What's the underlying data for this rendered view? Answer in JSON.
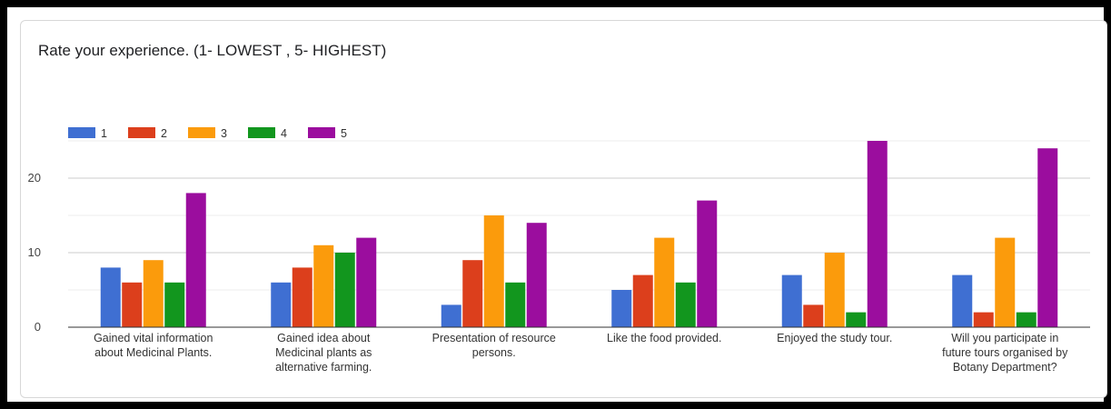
{
  "chart_data": {
    "type": "bar",
    "title": "Rate your experience. (1- LOWEST , 5- HIGHEST)",
    "categories": [
      [
        "Gained vital information",
        "about Medicinal Plants."
      ],
      [
        "Gained idea about",
        "Medicinal plants as",
        "alternative farming."
      ],
      [
        "Presentation of resource",
        "persons."
      ],
      [
        "Like the food provided."
      ],
      [
        "Enjoyed the study tour."
      ],
      [
        "Will you participate in",
        "future tours organised by",
        "Botany Department?"
      ]
    ],
    "series": [
      {
        "name": "1",
        "color": "#3f6fd2",
        "values": [
          8,
          6,
          3,
          5,
          7,
          7
        ]
      },
      {
        "name": "2",
        "color": "#dc3f1c",
        "values": [
          6,
          8,
          9,
          7,
          3,
          2
        ]
      },
      {
        "name": "3",
        "color": "#fb9b0c",
        "values": [
          9,
          11,
          15,
          12,
          10,
          12
        ]
      },
      {
        "name": "4",
        "color": "#12961e",
        "values": [
          6,
          10,
          6,
          6,
          2,
          2
        ]
      },
      {
        "name": "5",
        "color": "#9b0d9e",
        "values": [
          18,
          12,
          14,
          17,
          25,
          24
        ]
      }
    ],
    "ylim": [
      0,
      25
    ],
    "yticks": [
      0,
      10,
      20
    ],
    "grid": true,
    "legend_position": "top-left"
  }
}
